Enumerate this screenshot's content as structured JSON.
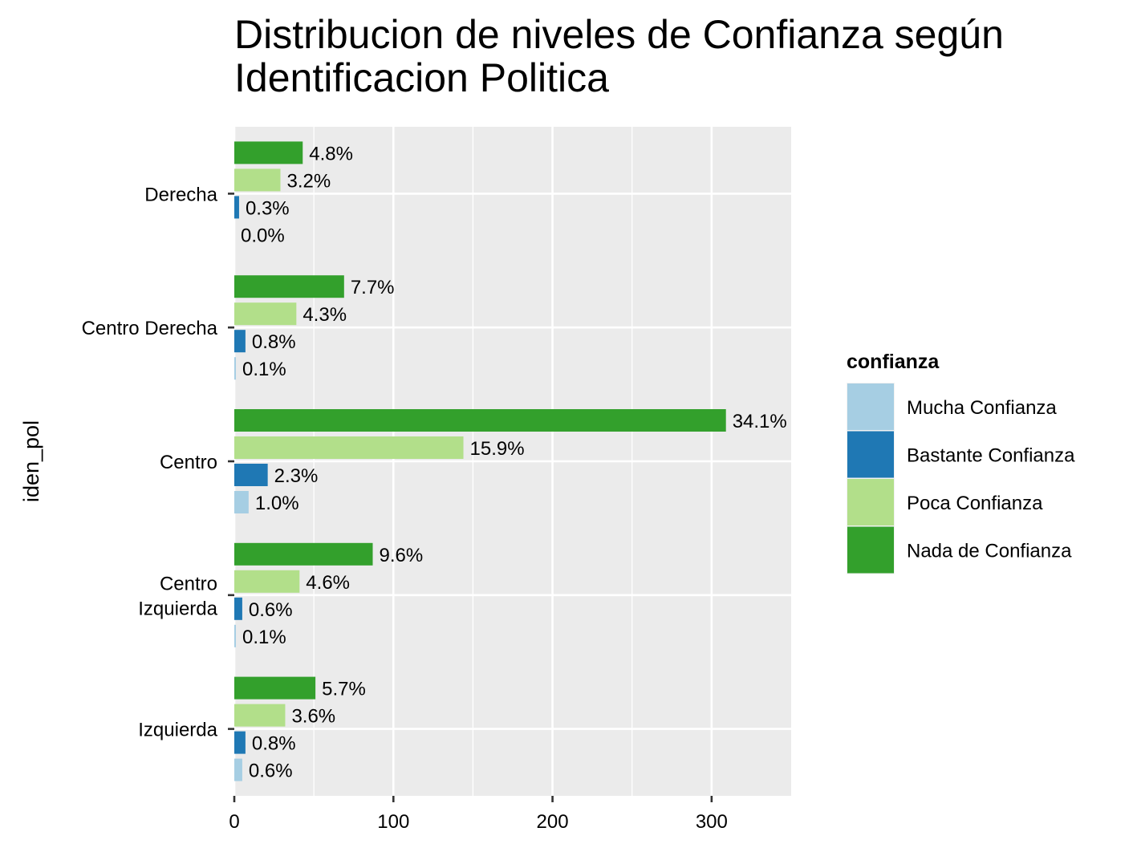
{
  "chart_data": {
    "type": "bar",
    "orientation": "horizontal",
    "title_lines": [
      "Distribucion de niveles de Confianza según",
      "Identificacion Politica"
    ],
    "xlabel": "",
    "ylabel": "iden_pol",
    "xlim": [
      0,
      350
    ],
    "x_ticks": [
      0,
      100,
      200,
      300
    ],
    "grid": true,
    "legend_position": "right",
    "legend_title": "confianza",
    "categories": [
      {
        "lines": [
          "Izquierda"
        ]
      },
      {
        "lines": [
          "Centro",
          "Izquierda"
        ]
      },
      {
        "lines": [
          "Centro"
        ]
      },
      {
        "lines": [
          "Centro Derecha"
        ]
      },
      {
        "lines": [
          "Derecha"
        ]
      }
    ],
    "series": [
      {
        "name": "Mucha Confianza",
        "color": "#A6CEE3",
        "values": [
          5,
          1,
          9,
          1,
          0
        ],
        "labels": [
          "0.6%",
          "0.1%",
          "1.0%",
          "0.1%",
          "0.0%"
        ]
      },
      {
        "name": "Bastante Confianza",
        "color": "#1F78B4",
        "values": [
          7,
          5,
          21,
          7,
          3
        ],
        "labels": [
          "0.8%",
          "0.6%",
          "2.3%",
          "0.8%",
          "0.3%"
        ]
      },
      {
        "name": "Poca Confianza",
        "color": "#B2DF8A",
        "values": [
          32,
          41,
          144,
          39,
          29
        ],
        "labels": [
          "3.6%",
          "4.6%",
          "15.9%",
          "4.3%",
          "3.2%"
        ]
      },
      {
        "name": "Nada de Confianza",
        "color": "#33A02C",
        "values": [
          51,
          87,
          309,
          69,
          43
        ],
        "labels": [
          "5.7%",
          "9.6%",
          "34.1%",
          "7.7%",
          "4.8%"
        ]
      }
    ]
  }
}
